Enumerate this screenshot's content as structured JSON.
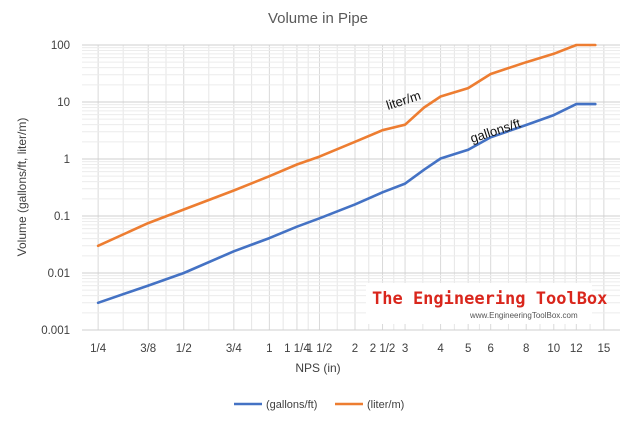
{
  "chart_data": {
    "type": "line",
    "title": "Volume  in Pipe",
    "xlabel": "NPS (in)",
    "ylabel": "Volume (gallons/ft, liter/m)",
    "yscale": "log",
    "ylim": [
      0.001,
      100
    ],
    "y_ticks": [
      "0.001",
      "0.01",
      "0.1",
      "1",
      "10",
      "100"
    ],
    "categories": [
      "1/4",
      "3/8",
      "1/2",
      "3/4",
      "1",
      "1 1/4",
      "1 1/2",
      "2",
      "2 1/2",
      "3",
      "4",
      "5",
      "6",
      "8",
      "10",
      "12",
      "15"
    ],
    "x": [
      0.25,
      0.375,
      0.5,
      0.75,
      1,
      1.25,
      1.5,
      2,
      2.5,
      3,
      4,
      5,
      6,
      8,
      10,
      12,
      15
    ],
    "grid": true,
    "legend_position": "bottom",
    "series": [
      {
        "name": "(gallons/ft)",
        "color": "#4472c4",
        "x": [
          0.25,
          0.375,
          0.5,
          0.75,
          1,
          1.25,
          1.5,
          2,
          2.5,
          3,
          3.5,
          4,
          5,
          6,
          8,
          10,
          12,
          14
        ],
        "values": [
          0.003,
          0.006,
          0.01,
          0.024,
          0.041,
          0.065,
          0.091,
          0.16,
          0.26,
          0.37,
          0.65,
          1.02,
          1.45,
          2.4,
          3.95,
          5.9,
          9.2,
          9.2
        ]
      },
      {
        "name": "(liter/m)",
        "color": "#ed7d31",
        "x": [
          0.25,
          0.375,
          0.5,
          0.75,
          1,
          1.25,
          1.5,
          2,
          2.5,
          3,
          3.5,
          4,
          5,
          6,
          8,
          10,
          12,
          14
        ],
        "values": [
          0.03,
          0.075,
          0.13,
          0.28,
          0.5,
          0.8,
          1.1,
          2.0,
          3.2,
          4.0,
          8.0,
          12.5,
          17.5,
          31.0,
          50.0,
          70.0,
          100.0,
          100.0
        ]
      }
    ],
    "annotations": [
      "liter/m",
      "gallons/ft"
    ]
  },
  "watermark": {
    "title": "The Engineering ToolBox",
    "url": "www.EngineeringToolBox.com"
  }
}
